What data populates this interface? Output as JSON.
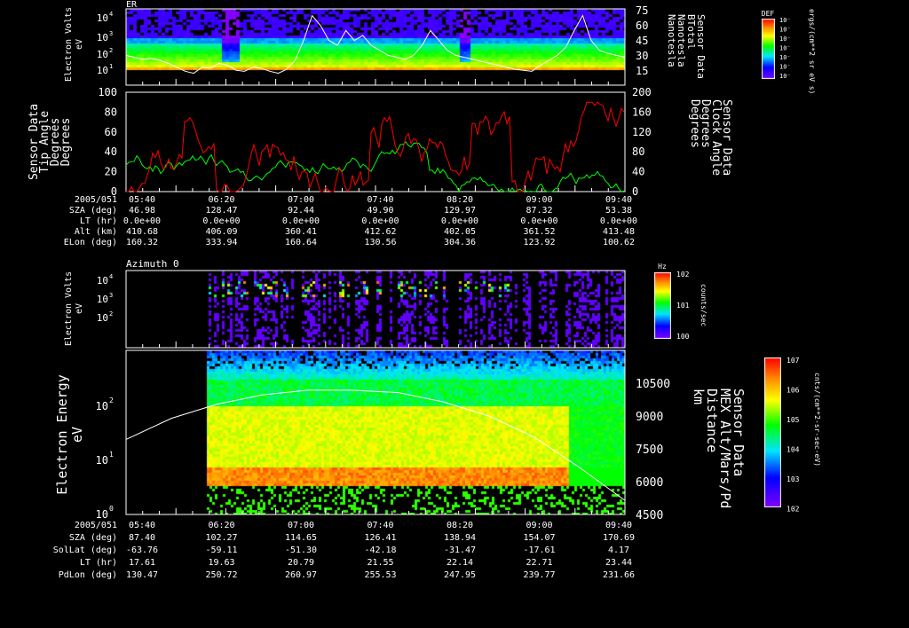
{
  "chart_data": [
    {
      "type": "heatmap",
      "title": "ER",
      "ylabel": "Electron Volts eV",
      "y_scale": "log",
      "ylim": [
        1,
        20000
      ],
      "y_ticks": [
        "10^1",
        "10^2",
        "10^3",
        "10^4"
      ],
      "y2label": [
        "Sensor Data",
        "BTotal",
        "Nanotesla",
        "Nanotesla"
      ],
      "y2lim": [
        0,
        75
      ],
      "y2_ticks": [
        "15",
        "30",
        "45",
        "60",
        "75"
      ],
      "colorbar": {
        "title": "DEF",
        "unit": "ergs/(cm**2 sr eV s)",
        "ticks": [
          "10^-9",
          "10^-8",
          "10^-7",
          "10^-6",
          "10^-5",
          "10^-4",
          "10^-3"
        ]
      },
      "line_series": {
        "name": "BTotal",
        "color": "#ffffff",
        "values": [
          30,
          28,
          26,
          27,
          25,
          22,
          18,
          14,
          12,
          18,
          17,
          22,
          20,
          15,
          14,
          18,
          17,
          14,
          12,
          16,
          25,
          45,
          70,
          60,
          45,
          40,
          55,
          45,
          50,
          40,
          35,
          30,
          28,
          26,
          30,
          40,
          55,
          45,
          35,
          30,
          28,
          26,
          24,
          22,
          20,
          18,
          16,
          15,
          14,
          20,
          25,
          30,
          38,
          55,
          70,
          45,
          35,
          32,
          30,
          28
        ]
      }
    },
    {
      "type": "line",
      "ylabel": [
        "Sensor Data",
        "Tip Angle",
        "Degrees",
        "Degrees"
      ],
      "ylim": [
        0,
        100
      ],
      "y_ticks": [
        "0",
        "20",
        "40",
        "60",
        "80",
        "100"
      ],
      "y2label": [
        "Sensor Data",
        "Clock Angle",
        "Degrees",
        "Degrees"
      ],
      "y2lim": [
        0,
        200
      ],
      "y2_ticks": [
        "0",
        "40",
        "80",
        "120",
        "160",
        "200"
      ],
      "series": [
        {
          "name": "Tip Angle",
          "color": "#ff0000",
          "axis": "left"
        },
        {
          "name": "Clock Angle",
          "color": "#00ff00",
          "axis": "right"
        }
      ]
    },
    {
      "type": "heatmap",
      "title": "Azimuth 0",
      "ylabel": "Electron Volts eV",
      "y_scale": "log",
      "y_ticks": [
        "10^2",
        "10^3",
        "10^4"
      ],
      "colorbar": {
        "title": "Hz",
        "unit": "counts/sec",
        "ticks": [
          "10^0",
          "10^1",
          "10^2"
        ]
      }
    },
    {
      "type": "heatmap",
      "ylabel": "Electron Energy eV",
      "y_scale": "log",
      "ylim": [
        1,
        1000
      ],
      "y_ticks": [
        "10^0",
        "10^1",
        "10^2"
      ],
      "y2label": [
        "Sensor Data",
        "MEX Alt/Mars/Pd",
        "Distance",
        "km"
      ],
      "y2lim": [
        4500,
        11500
      ],
      "y2_ticks": [
        "4500",
        "6000",
        "7500",
        "9000",
        "10500"
      ],
      "colorbar": {
        "unit": "cnts/(cm**2-sr-sec-eV)",
        "ticks": [
          "10^2",
          "10^3",
          "10^4",
          "10^5",
          "10^6",
          "10^7"
        ]
      },
      "line_series": {
        "name": "MEX Alt",
        "color": "#ffffff",
        "values": [
          7700,
          8600,
          9200,
          9600,
          9800,
          9800,
          9700,
          9300,
          8700,
          7800,
          6500,
          5100
        ]
      }
    }
  ],
  "top_table": {
    "label_header": "2005/051",
    "times": [
      "05:40",
      "06:20",
      "07:00",
      "07:40",
      "08:20",
      "09:00",
      "09:40"
    ],
    "rows": [
      {
        "label": "SZA (deg)",
        "values": [
          "46.98",
          "128.47",
          "92.44",
          "49.90",
          "129.97",
          "87.32",
          "53.38"
        ]
      },
      {
        "label": "LT (hr)",
        "values": [
          "0.0e+00",
          "0.0e+00",
          "0.0e+00",
          "0.0e+00",
          "0.0e+00",
          "0.0e+00",
          "0.0e+00"
        ]
      },
      {
        "label": "Alt (km)",
        "values": [
          "410.68",
          "406.09",
          "360.41",
          "412.62",
          "402.05",
          "361.52",
          "413.48"
        ]
      },
      {
        "label": "ELon (deg)",
        "values": [
          "160.32",
          "333.94",
          "160.64",
          "130.56",
          "304.36",
          "123.92",
          "100.62"
        ]
      }
    ]
  },
  "bottom_table": {
    "label_header": "2005/051",
    "times": [
      "05:40",
      "06:20",
      "07:00",
      "07:40",
      "08:20",
      "09:00",
      "09:40"
    ],
    "rows": [
      {
        "label": "SZA (deg)",
        "values": [
          "87.40",
          "102.27",
          "114.65",
          "126.41",
          "138.94",
          "154.07",
          "170.69"
        ]
      },
      {
        "label": "SolLat (deg)",
        "values": [
          "-63.76",
          "-59.11",
          "-51.30",
          "-42.18",
          "-31.47",
          "-17.61",
          "4.17"
        ]
      },
      {
        "label": "LT (hr)",
        "values": [
          "17.61",
          "19.63",
          "20.79",
          "21.55",
          "22.14",
          "22.71",
          "23.44"
        ]
      },
      {
        "label": "PdLon (deg)",
        "values": [
          "130.47",
          "250.72",
          "260.97",
          "255.53",
          "247.95",
          "239.77",
          "231.66"
        ]
      }
    ]
  }
}
